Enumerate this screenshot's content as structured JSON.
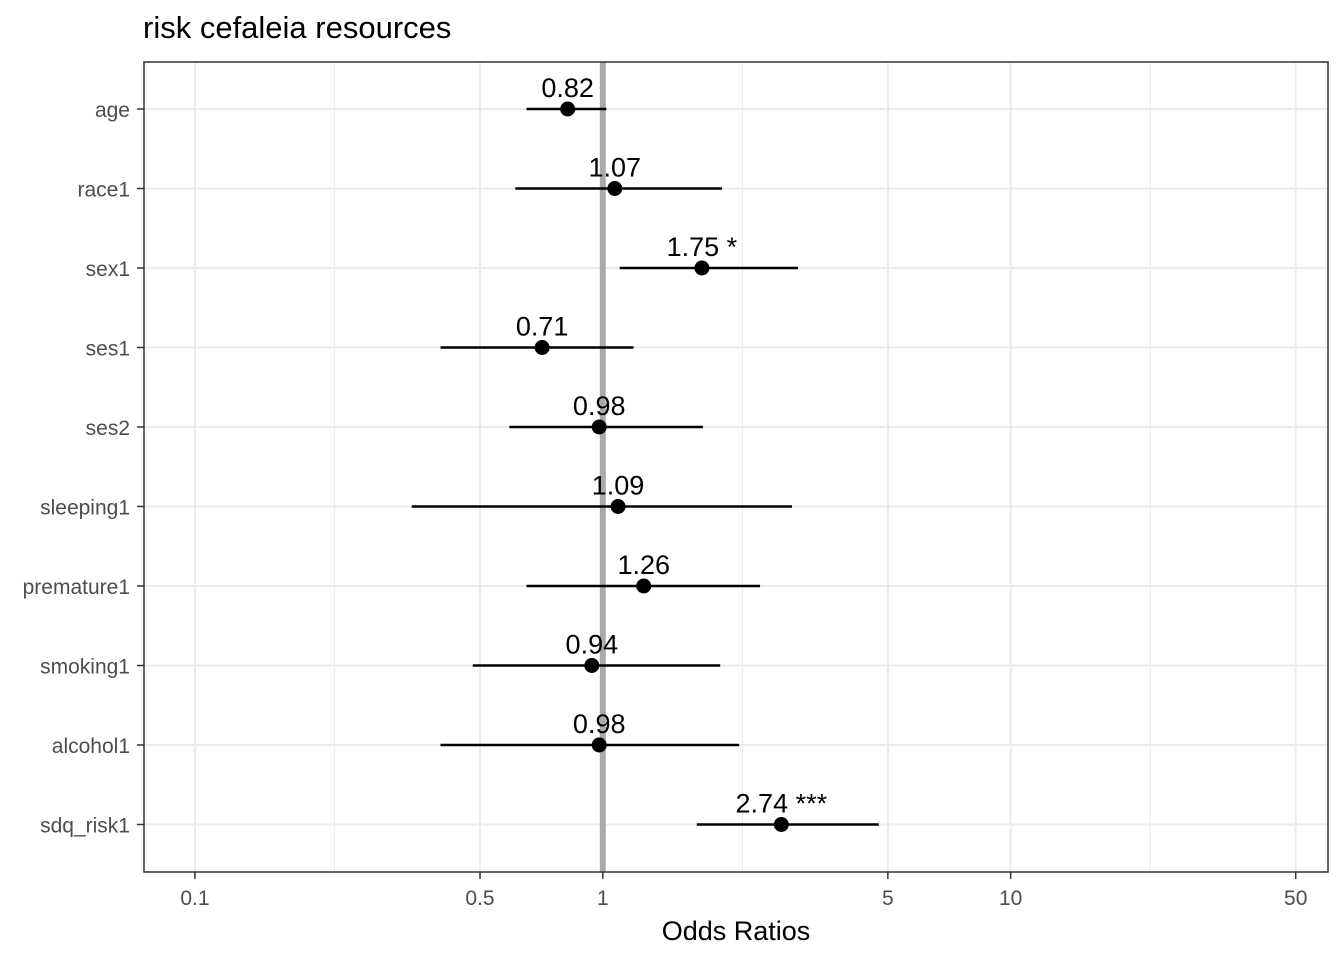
{
  "chart_data": {
    "type": "forest",
    "title": "risk cefaleia resources",
    "xlabel": "Odds Ratios",
    "x_scale": "log10",
    "xlim": [
      0.075,
      60
    ],
    "x_ticks": [
      0.1,
      0.5,
      1,
      5,
      10,
      50
    ],
    "x_tick_labels": [
      "0.1",
      "0.5",
      "1",
      "5",
      "10",
      "50"
    ],
    "x_minor_gridlines": [
      0.22,
      2.2,
      22
    ],
    "reference_line": 1,
    "grid": true,
    "categories": [
      "age",
      "race1",
      "sex1",
      "ses1",
      "ses2",
      "sleeping1",
      "premature1",
      "smoking1",
      "alcohol1",
      "sdq_risk1"
    ],
    "series": [
      {
        "estimates": [
          0.82,
          1.07,
          1.75,
          0.71,
          0.98,
          1.09,
          1.26,
          0.94,
          0.98,
          2.74
        ],
        "ci_low": [
          0.65,
          0.61,
          1.1,
          0.4,
          0.59,
          0.34,
          0.65,
          0.48,
          0.4,
          1.7
        ],
        "ci_high": [
          1.02,
          1.96,
          3.01,
          1.19,
          1.76,
          2.91,
          2.43,
          1.94,
          2.16,
          4.75
        ],
        "labels": [
          "0.82",
          "1.07",
          "1.75 *",
          "0.71",
          "0.98",
          "1.09",
          "1.26",
          "0.94",
          "0.98",
          "2.74 ***"
        ]
      }
    ],
    "colors": {
      "point": "#000000",
      "reference_line": "#aaaaaa",
      "grid": "#ebebeb",
      "panel_border": "#333333",
      "tick_text": "#4d4d4d"
    }
  }
}
